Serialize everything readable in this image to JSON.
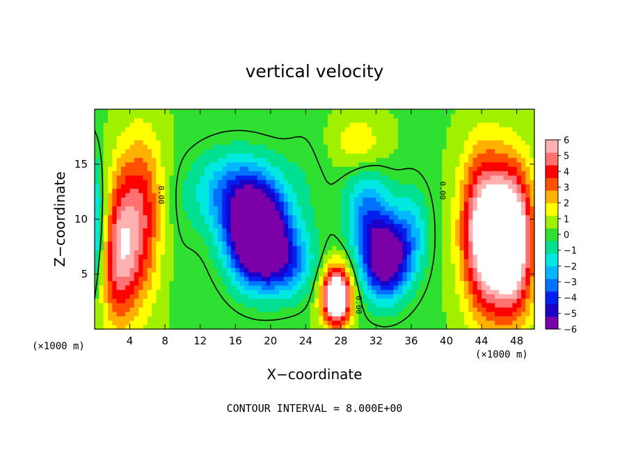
{
  "chart_data": {
    "type": "heatmap",
    "title": "vertical velocity",
    "xlabel": "X−coordinate",
    "ylabel": "Z−coordinate",
    "x_unit_left": "(×1000 m)",
    "x_unit_right": "(×1000 m)",
    "contour_note": "CONTOUR INTERVAL = 8.000E+00",
    "xlim": [
      0,
      50
    ],
    "ylim": [
      0,
      20
    ],
    "xticks": [
      4,
      8,
      12,
      16,
      20,
      24,
      28,
      32,
      36,
      40,
      44,
      48
    ],
    "yticks": [
      5,
      10,
      15
    ],
    "colorbar": {
      "ticks": [
        "6",
        "5",
        "4",
        "3",
        "2",
        "1",
        "0",
        "−1",
        "−2",
        "−3",
        "−4",
        "−5",
        "−6"
      ],
      "range": [
        -6,
        6
      ],
      "colors": [
        "#7a00a8",
        "#1a00c8",
        "#0020f0",
        "#0070ff",
        "#00b8ff",
        "#00e8e0",
        "#00e090",
        "#30e030",
        "#a0f000",
        "#ffff00",
        "#ffb000",
        "#ff5000",
        "#ff0000",
        "#ff7070",
        "#ffb0b0"
      ],
      "clip_color": "#ffffff"
    },
    "contour_labels": [
      "0.00",
      "0.00",
      "0.00"
    ],
    "features": [
      {
        "x": 0,
        "z": 9,
        "w": -6.0,
        "sx": 6,
        "sz": 6
      },
      {
        "x": 2.5,
        "z": 8,
        "w": 9.0,
        "sx": 2.5,
        "sz": 6.5
      },
      {
        "x": 5.5,
        "z": 10,
        "w": 5.0,
        "sx": 2.5,
        "sz": 7
      },
      {
        "x": 47.5,
        "z": 8,
        "w": 9.0,
        "sx": 3,
        "sz": 6.5
      },
      {
        "x": 44,
        "z": 9,
        "w": 5.5,
        "sx": 2.5,
        "sz": 7
      },
      {
        "x": 50,
        "z": 8,
        "w": -2.0,
        "sx": 2,
        "sz": 6
      },
      {
        "x": 18.5,
        "z": 8.5,
        "w": -10.0,
        "sx": 3.2,
        "sz": 4
      },
      {
        "x": 16,
        "z": 12.5,
        "w": -3.5,
        "sx": 4.5,
        "sz": 3.5
      },
      {
        "x": 22,
        "z": 6,
        "w": -3.0,
        "sx": 3,
        "sz": 3
      },
      {
        "x": 33,
        "z": 6.5,
        "w": -7.5,
        "sx": 2.6,
        "sz": 3.5
      },
      {
        "x": 31,
        "z": 11,
        "w": -3.0,
        "sx": 2.5,
        "sz": 3.5
      },
      {
        "x": 36,
        "z": 9,
        "w": -2.0,
        "sx": 2,
        "sz": 4
      },
      {
        "x": 27.5,
        "z": 3,
        "w": 9.0,
        "sx": 1.6,
        "sz": 2.6
      },
      {
        "x": 30,
        "z": 17,
        "w": 1.5,
        "sx": 3,
        "sz": 2.5
      },
      {
        "x": 24,
        "z": 13,
        "w": -0.5,
        "sx": 3,
        "sz": 6
      }
    ]
  }
}
